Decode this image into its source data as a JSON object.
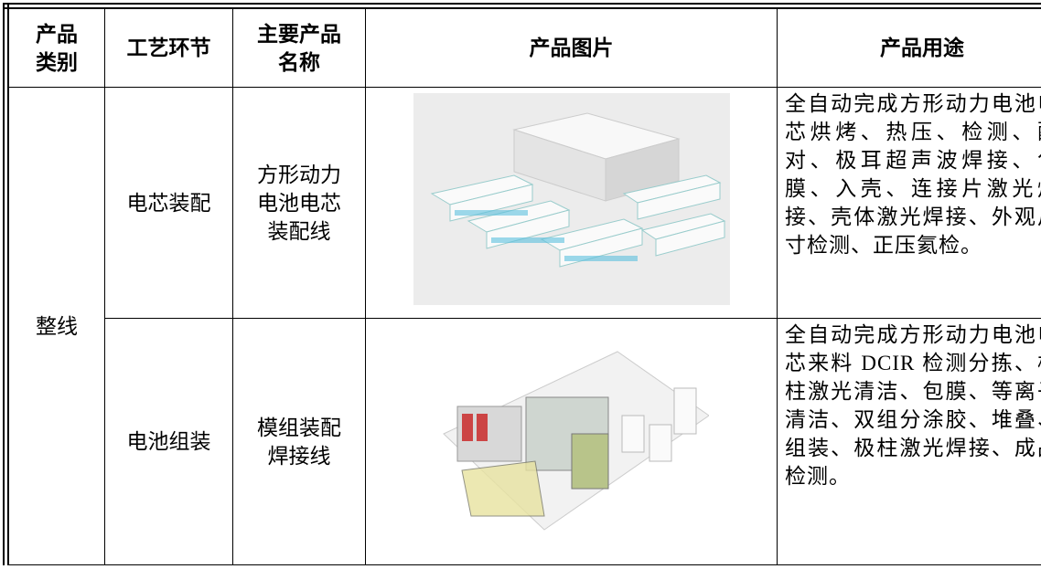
{
  "table": {
    "header": [
      [
        "产品",
        "类别"
      ],
      [
        "工艺环节"
      ],
      [
        "主要产品",
        "名称"
      ],
      [
        "产品图片"
      ],
      [
        "产品用途"
      ]
    ],
    "rows": [
      {
        "category": "整线",
        "process": "电芯装配",
        "product": [
          "方形动力",
          "电池电芯",
          "装配线"
        ],
        "use": "全自动完成方形动力电池电芯烘烤、热压、检测、配对、极耳超声波焊接、包膜、入壳、连接片激光焊接、壳体激光焊接、外观尺寸检测、正压氦检。"
      },
      {
        "process": "电池组装",
        "product": [
          "模组装配",
          "焊接线"
        ],
        "use": "全自动完成方形动力电池电芯来料 DCIR 检测分拣、极柱激光清洁、包膜、等离子清洁、双组分涂胶、堆叠、组装、极柱激光焊接、成品检测。"
      }
    ]
  }
}
